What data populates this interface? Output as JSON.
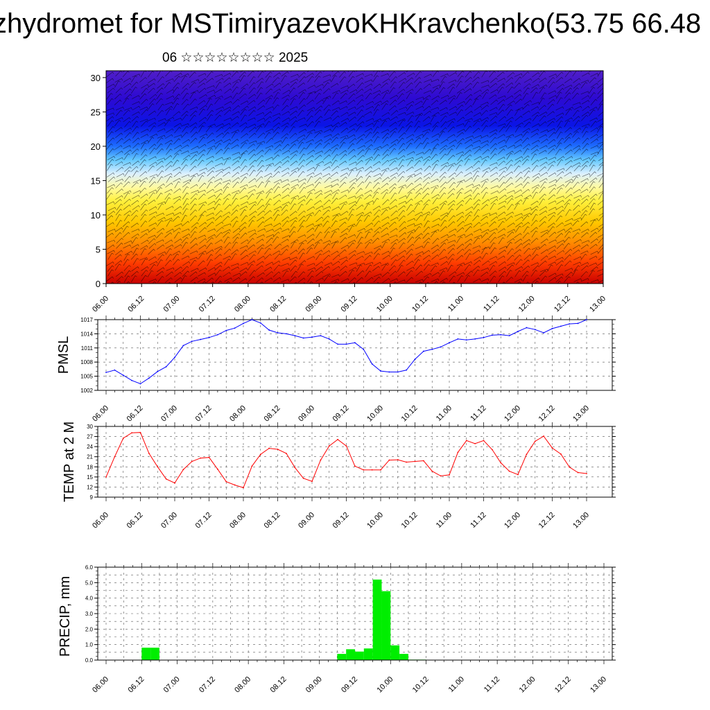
{
  "title": "zhydromet for MSTimiryazevoKHKravchenko(53.75 66.48",
  "subtitle": "06 ☆☆☆☆☆☆☆☆ 2025",
  "chart_data": [
    {
      "type": "heatmap",
      "title": "",
      "xlabel": "",
      "ylabel": "",
      "ylim": [
        0,
        31
      ],
      "y_ticks": [
        "0",
        "5",
        "10",
        "15",
        "20",
        "25",
        "30"
      ],
      "x_ticks": [
        "06.00",
        "06.12",
        "07.00",
        "07.12",
        "08.00",
        "08.12",
        "09.00",
        "09.12",
        "10.00",
        "10.12",
        "11.00",
        "11.12",
        "12.00",
        "12.12",
        "13.00"
      ],
      "colors": [
        "#c80000",
        "#ff3c00",
        "#ff8c00",
        "#ffc800",
        "#fff03c",
        "#fffaa0",
        "#dcf0ff",
        "#64c8ff",
        "#1e6eff",
        "#0a14e6",
        "#2d0ad2",
        "#501ec8"
      ],
      "levels": [
        0,
        3,
        6,
        9,
        12,
        14,
        16,
        18,
        20,
        23,
        27,
        31
      ],
      "overlay": "wind barbs"
    },
    {
      "type": "line",
      "ylabel": "PMSL",
      "ylim": [
        1002,
        1017
      ],
      "y_ticks": [
        "1002",
        "1005",
        "1008",
        "1011",
        "1014",
        "1017"
      ],
      "x_ticks": [
        "06.00",
        "06.12",
        "07.00",
        "07.12",
        "08.00",
        "08.12",
        "09.00",
        "09.12",
        "10.00",
        "10.12",
        "11.00",
        "11.12",
        "12.00",
        "12.12",
        "13.00"
      ],
      "x": [
        0,
        3,
        6,
        9,
        12,
        15,
        18,
        21,
        24,
        27,
        30,
        33,
        36,
        39,
        42,
        45,
        48,
        51,
        54,
        57,
        60,
        63,
        66,
        69,
        72,
        75,
        78,
        81,
        84,
        87,
        90,
        93,
        96,
        99,
        102,
        105,
        108,
        111,
        114,
        117,
        120,
        123,
        126,
        129,
        132,
        135,
        138,
        141,
        144,
        147,
        150,
        153,
        156,
        159,
        162,
        165,
        168
      ],
      "color": "#0000ff",
      "values": [
        1005.8,
        1006.3,
        1005.2,
        1004.1,
        1003.4,
        1004.6,
        1006.0,
        1007.0,
        1009.0,
        1011.5,
        1012.4,
        1012.8,
        1013.2,
        1013.8,
        1014.7,
        1015.2,
        1016.2,
        1017.0,
        1016.3,
        1014.8,
        1014.2,
        1014.0,
        1013.6,
        1013.1,
        1013.3,
        1013.6,
        1012.9,
        1011.8,
        1011.8,
        1012.1,
        1010.7,
        1007.6,
        1006.1,
        1005.9,
        1005.9,
        1006.3,
        1008.6,
        1010.3,
        1010.7,
        1011.2,
        1012.1,
        1012.9,
        1012.7,
        1012.9,
        1013.2,
        1013.7,
        1013.8,
        1013.6,
        1014.5,
        1015.3,
        1014.9,
        1014.2,
        1015.1,
        1015.6,
        1016.1,
        1016.2,
        1017.0
      ]
    },
    {
      "type": "line",
      "ylabel": "TEMP at 2 M",
      "ylim": [
        9,
        30
      ],
      "y_ticks": [
        "9",
        "12",
        "15",
        "18",
        "21",
        "24",
        "27",
        "30"
      ],
      "x_ticks": [
        "06.00",
        "06.12",
        "07.00",
        "07.12",
        "08.00",
        "08.12",
        "09.00",
        "09.12",
        "10.00",
        "10.12",
        "11.00",
        "11.12",
        "12.00",
        "12.12",
        "13.00"
      ],
      "x": [
        0,
        3,
        6,
        9,
        12,
        15,
        18,
        21,
        24,
        27,
        30,
        33,
        36,
        39,
        42,
        45,
        48,
        51,
        54,
        57,
        60,
        63,
        66,
        69,
        72,
        75,
        78,
        81,
        84,
        87,
        90,
        93,
        96,
        99,
        102,
        105,
        108,
        111,
        114,
        117,
        120,
        123,
        126,
        129,
        132,
        135,
        138,
        141,
        144,
        147,
        150,
        153,
        156,
        159,
        162,
        165,
        168
      ],
      "color": "#ff0000",
      "values": [
        15.0,
        21.0,
        26.5,
        28.1,
        28.2,
        22.0,
        18.0,
        14.4,
        13.2,
        17.2,
        19.6,
        20.6,
        20.8,
        17.3,
        13.6,
        12.6,
        11.8,
        18.2,
        21.7,
        23.5,
        23.2,
        22.0,
        17.8,
        14.6,
        13.7,
        20.0,
        24.2,
        26.1,
        24.2,
        18.2,
        17.1,
        17.1,
        17.1,
        20.0,
        20.1,
        19.4,
        19.6,
        19.8,
        16.7,
        15.3,
        15.6,
        22.3,
        25.8,
        24.9,
        25.8,
        23.1,
        19.2,
        16.7,
        15.7,
        21.7,
        25.6,
        27.1,
        23.6,
        21.8,
        17.9,
        16.3,
        16.0
      ]
    },
    {
      "type": "bar",
      "ylabel": "PRECIP, mm",
      "ylim": [
        0,
        6.0
      ],
      "y_ticks": [
        "0.0",
        "1.0",
        "2.0",
        "3.0",
        "4.0",
        "5.0",
        "6.0"
      ],
      "x_ticks": [
        "06.00",
        "06.12",
        "07.00",
        "07.12",
        "08.00",
        "08.12",
        "09.00",
        "09.12",
        "10.00",
        "10.12",
        "11.00",
        "11.12",
        "12.00",
        "12.12",
        "13.00"
      ],
      "color": "#00ee00",
      "bins": [
        {
          "x": 12,
          "value": 0.8
        },
        {
          "x": 15,
          "value": 0.8
        },
        {
          "x": 78,
          "value": 0.4
        },
        {
          "x": 81,
          "value": 0.7
        },
        {
          "x": 84,
          "value": 0.55
        },
        {
          "x": 87,
          "value": 0.75
        },
        {
          "x": 90,
          "value": 5.2
        },
        {
          "x": 93,
          "value": 4.45
        },
        {
          "x": 96,
          "value": 0.95
        },
        {
          "x": 99,
          "value": 0.4
        },
        {
          "x": 102,
          "value": 0.03
        },
        {
          "x": 105,
          "value": 0.03
        },
        {
          "x": 156,
          "value": 0.02
        }
      ]
    }
  ]
}
